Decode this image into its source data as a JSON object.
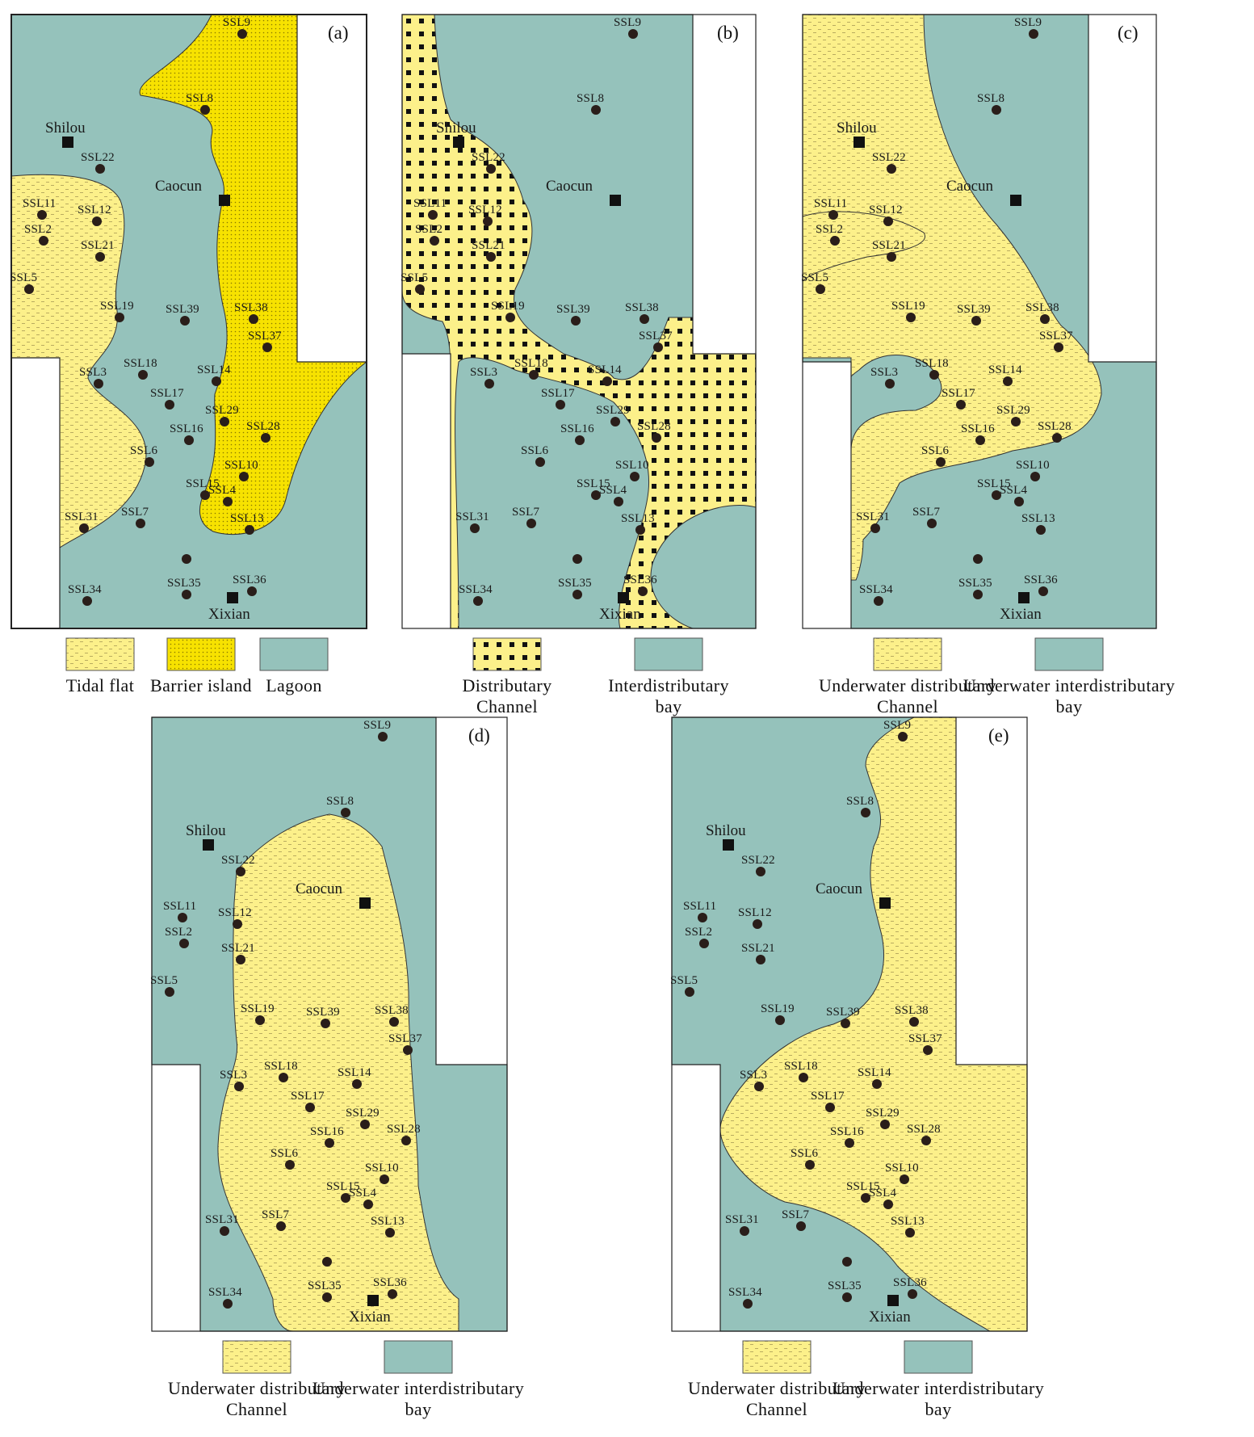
{
  "panels": [
    {
      "tag": "(a)",
      "legend": [
        {
          "label": "Tidal flat"
        },
        {
          "label": "Barrier island"
        },
        {
          "label": "Lagoon"
        }
      ]
    },
    {
      "tag": "(b)",
      "legend": [
        {
          "label": "Distributary",
          "label2": "Channel"
        },
        {
          "label": "Interdistributary",
          "label2": "bay"
        }
      ]
    },
    {
      "tag": "(c)",
      "legend": [
        {
          "label": "Underwater distributary",
          "label2": "Channel"
        },
        {
          "label": "Underwater interdistributary",
          "label2": "bay"
        }
      ]
    },
    {
      "tag": "(d)",
      "legend": [
        {
          "label": "Underwater distributary",
          "label2": "Channel"
        },
        {
          "label": "Underwater interdistributary",
          "label2": "bay"
        }
      ]
    },
    {
      "tag": "(e)",
      "legend": [
        {
          "label": "Underwater distributary",
          "label2": "Channel"
        },
        {
          "label": "Underwater interdistributary",
          "label2": "bay"
        }
      ]
    }
  ],
  "towns": [
    {
      "name": "Shilou"
    },
    {
      "name": "Caocun"
    },
    {
      "name": "Xixian"
    }
  ],
  "wells": [
    {
      "name": "SSL9"
    },
    {
      "name": "SSL8"
    },
    {
      "name": "SSL22"
    },
    {
      "name": "SSL11"
    },
    {
      "name": "SSL2"
    },
    {
      "name": "SSL12"
    },
    {
      "name": "SSL21"
    },
    {
      "name": "SSL5"
    },
    {
      "name": "SSL19"
    },
    {
      "name": "SSL39"
    },
    {
      "name": "SSL38"
    },
    {
      "name": "SSL37"
    },
    {
      "name": "SSL3"
    },
    {
      "name": "SSL18"
    },
    {
      "name": "SSL14"
    },
    {
      "name": "SSL17"
    },
    {
      "name": "SSL29"
    },
    {
      "name": "SSL16"
    },
    {
      "name": "SSL28"
    },
    {
      "name": "SSL6"
    },
    {
      "name": "SSL10"
    },
    {
      "name": "SSL15"
    },
    {
      "name": "SSL4"
    },
    {
      "name": "SSL31"
    },
    {
      "name": "SSL7"
    },
    {
      "name": "SSL13"
    },
    {
      "name": "SSL34"
    },
    {
      "name": "SSL35"
    },
    {
      "name": "SSL36"
    },
    {
      "name": ""
    }
  ],
  "colors": {
    "lagoon": "#95c2bb",
    "sand": "#fcf08a",
    "barrier": "#f7e200",
    "dot": "#2a1e1a",
    "frame": "#222222"
  }
}
